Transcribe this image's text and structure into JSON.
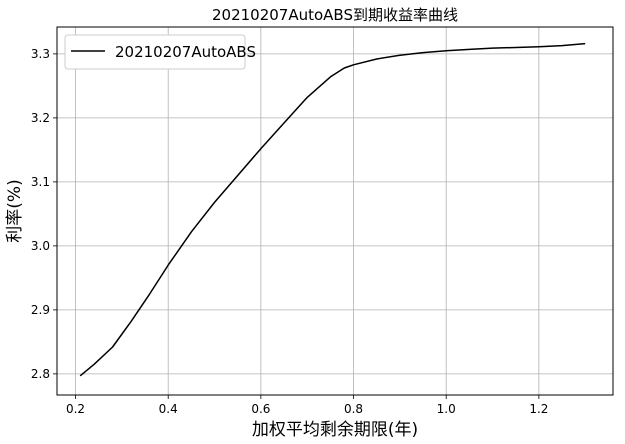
{
  "chart_data": {
    "type": "line",
    "title": "20210207AutoABS到期收益率曲线",
    "xlabel": "加权平均剩余期限(年)",
    "ylabel": "利率(%)",
    "xlim": [
      0.16,
      1.36
    ],
    "ylim": [
      2.767,
      3.342
    ],
    "xticks": [
      0.2,
      0.4,
      0.6,
      0.8,
      1.0,
      1.2
    ],
    "xtick_labels": [
      "0.2",
      "0.4",
      "0.6",
      "0.8",
      "1.0",
      "1.2"
    ],
    "yticks": [
      2.8,
      2.9,
      3.0,
      3.1,
      3.2,
      3.3
    ],
    "ytick_labels": [
      "2.8",
      "2.9",
      "3.0",
      "3.1",
      "3.2",
      "3.3"
    ],
    "grid": true,
    "legend_position": "top-left",
    "series": [
      {
        "name": "20210207AutoABS",
        "color": "#000000",
        "x": [
          0.21,
          0.24,
          0.28,
          0.32,
          0.36,
          0.4,
          0.45,
          0.5,
          0.55,
          0.6,
          0.65,
          0.7,
          0.75,
          0.78,
          0.8,
          0.85,
          0.9,
          0.95,
          1.0,
          1.05,
          1.1,
          1.15,
          1.2,
          1.25,
          1.3
        ],
        "y": [
          2.797,
          2.815,
          2.842,
          2.882,
          2.925,
          2.97,
          3.022,
          3.068,
          3.11,
          3.152,
          3.192,
          3.232,
          3.264,
          3.278,
          3.283,
          3.292,
          3.298,
          3.302,
          3.305,
          3.307,
          3.309,
          3.31,
          3.311,
          3.313,
          3.316
        ]
      }
    ]
  }
}
